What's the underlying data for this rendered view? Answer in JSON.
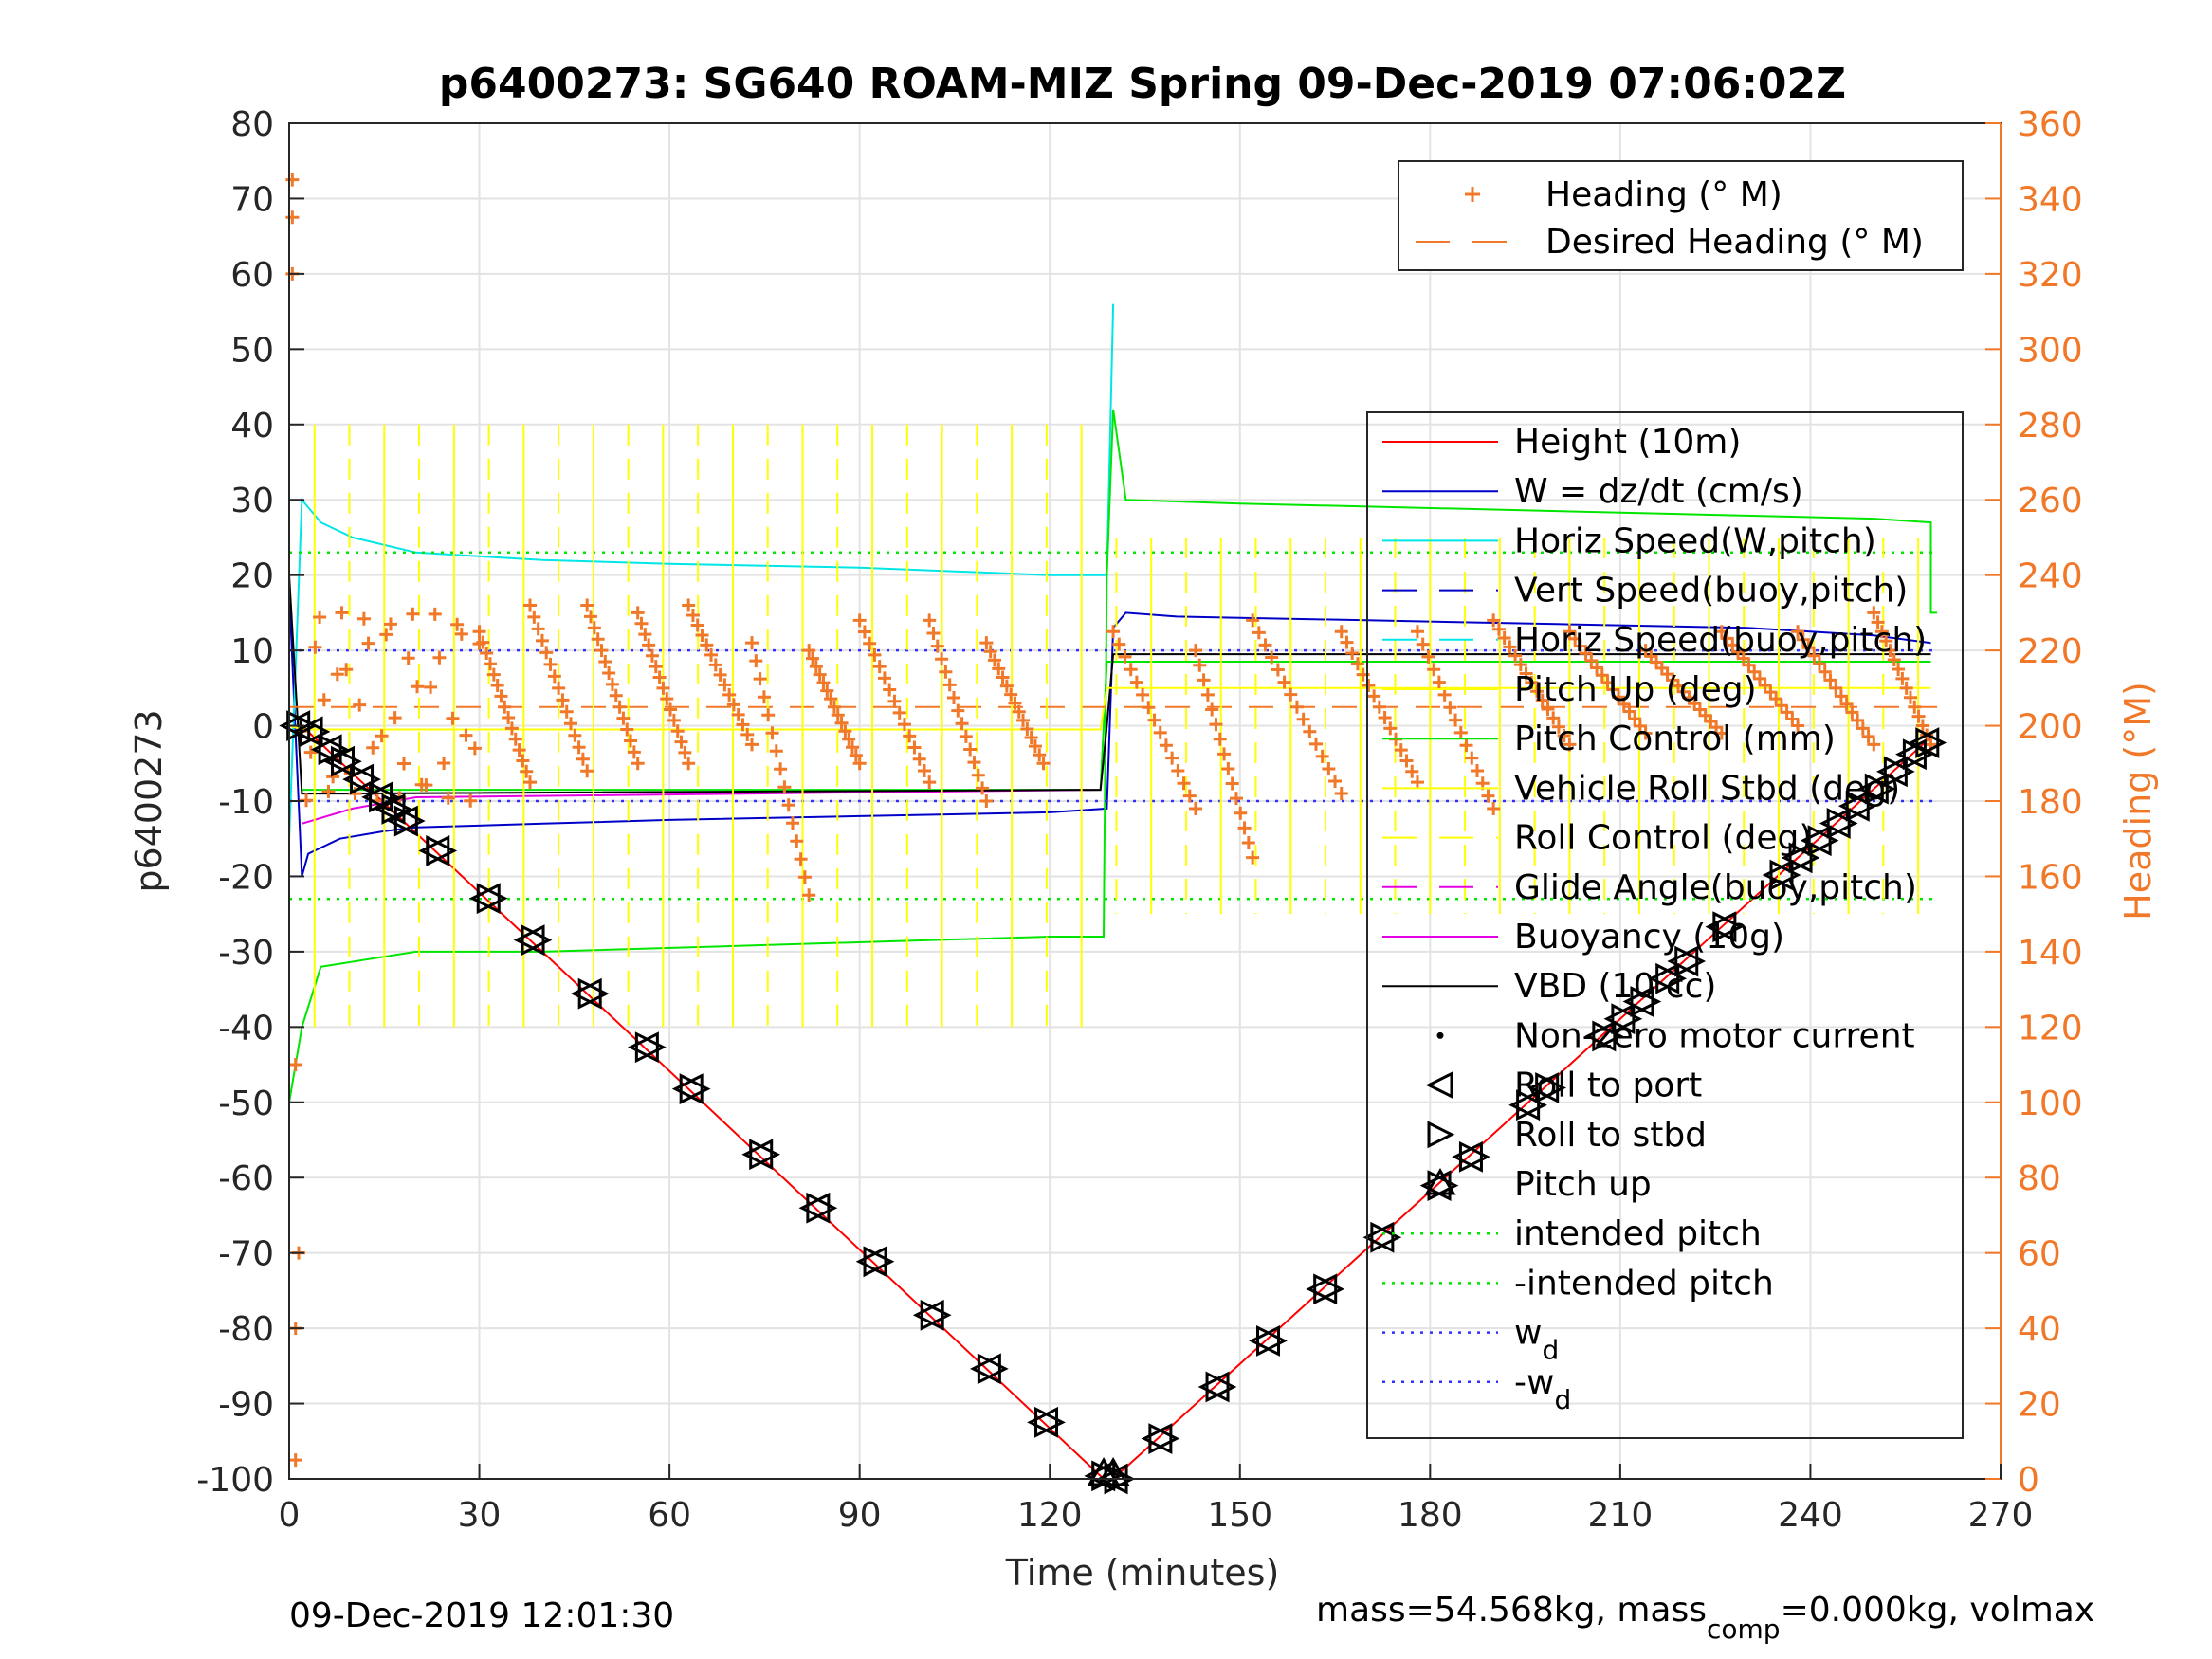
{
  "chart_data": {
    "type": "line",
    "title": "p6400273: SG640 ROAM-MIZ Spring 09-Dec-2019 07:06:02Z",
    "xlabel": "Time (minutes)",
    "ylabel": "p6400273",
    "ylabel_right": "Heading (°M)",
    "xlim": [
      0,
      270
    ],
    "ylim": [
      -100,
      80
    ],
    "ylim_right": [
      0,
      360
    ],
    "x_ticks": [
      0,
      30,
      60,
      90,
      120,
      150,
      180,
      210,
      240,
      270
    ],
    "y_ticks": [
      80,
      70,
      60,
      50,
      40,
      30,
      20,
      10,
      0,
      -10,
      -20,
      -30,
      -40,
      -50,
      -60,
      -70,
      -80,
      -90,
      -100
    ],
    "y_ticks_right": [
      360,
      340,
      320,
      300,
      280,
      260,
      240,
      220,
      200,
      180,
      160,
      140,
      120,
      100,
      80,
      60,
      40,
      20,
      0
    ],
    "grid": true,
    "footer_left": "09-Dec-2019 12:01:30",
    "footer_right_a": "mass=54.568kg, mass",
    "footer_right_sub": "comp",
    "footer_right_b": "=0.000kg, volmax",
    "colors": {
      "height": "#ff0000",
      "w": "#0000c8",
      "horiz_speed": "#00e6e6",
      "pitch": "#00e600",
      "roll": "#ffff00",
      "glide": "#e600e6",
      "vbd": "#000000",
      "heading": "#f07828",
      "wd": "#3232ff"
    },
    "heading_legend": [
      {
        "label": "Heading (° M)",
        "style": "plus"
      },
      {
        "label": "Desired Heading (° M)",
        "style": "dash"
      }
    ],
    "legend": [
      {
        "label": "Height (10m)",
        "style": "solid",
        "color": "#ff0000"
      },
      {
        "label": "W = dz/dt (cm/s)",
        "style": "solid",
        "color": "#0000c8"
      },
      {
        "label": "Horiz Speed(W,pitch)",
        "style": "solid",
        "color": "#00e6e6"
      },
      {
        "label": "Vert Speed(buoy,pitch)",
        "style": "dash",
        "color": "#0000c8"
      },
      {
        "label": "Horiz Speed(buoy,pitch)",
        "style": "dash",
        "color": "#00e6e6"
      },
      {
        "label": "Pitch Up (deg)",
        "style": "solid",
        "color": "#ffff00"
      },
      {
        "label": "Pitch Control (mm)",
        "style": "solid",
        "color": "#00e600"
      },
      {
        "label": "Vehicle Roll Stbd (deg)",
        "style": "solid",
        "color": "#ffff00"
      },
      {
        "label": "Roll Control (deg)",
        "style": "dash",
        "color": "#ffff00"
      },
      {
        "label": "Glide Angle(buoy,pitch)",
        "style": "dash",
        "color": "#e600e6"
      },
      {
        "label": "Buoyancy (10g)",
        "style": "solid",
        "color": "#e600e6"
      },
      {
        "label": "VBD (10 cc)",
        "style": "solid",
        "color": "#000000"
      },
      {
        "label": "Non-zero motor current",
        "style": "dot",
        "color": "#000000"
      },
      {
        "label": "Roll to port",
        "style": "tri-left",
        "color": "#000000"
      },
      {
        "label": "Roll to stbd",
        "style": "tri-right",
        "color": "#000000"
      },
      {
        "label": "Pitch up",
        "style": "tri-up",
        "color": "#000000"
      },
      {
        "label": "intended pitch",
        "style": "dotted",
        "color": "#00e600"
      },
      {
        "label": "-intended pitch",
        "style": "dotted",
        "color": "#00e600"
      },
      {
        "label": "w",
        "sub": "d",
        "style": "dotted",
        "color": "#3232ff"
      },
      {
        "label": "-w",
        "sub": "d",
        "style": "dotted",
        "color": "#3232ff"
      }
    ],
    "series": [
      {
        "key": "height",
        "x": [
          0,
          2,
          128.5,
          130,
          259
        ],
        "y": [
          0,
          0,
          -100,
          -100,
          -1.5
        ]
      },
      {
        "key": "w",
        "x": [
          0,
          2,
          3,
          8,
          15,
          20,
          40,
          60,
          90,
          120,
          129,
          130,
          132,
          140,
          170,
          200,
          230,
          250,
          259
        ],
        "y": [
          18,
          -20,
          -17,
          -15,
          -14,
          -13.5,
          -13,
          -12.5,
          -12,
          -11.5,
          -11,
          13,
          15,
          14.5,
          14,
          13.5,
          13,
          12,
          11
        ]
      },
      {
        "key": "horiz_speed",
        "x": [
          0,
          2,
          5,
          10,
          20,
          40,
          60,
          90,
          120,
          129,
          130
        ],
        "y": [
          -15,
          30,
          27,
          25,
          23,
          22,
          21.5,
          21,
          20,
          20,
          56
        ]
      },
      {
        "key": "pitch_control",
        "x": [
          0,
          2,
          5,
          20,
          40,
          80,
          120,
          128.5,
          129,
          130,
          132,
          150,
          200,
          250,
          259,
          259,
          260
        ],
        "y": [
          -50,
          -40,
          -32,
          -30,
          -30,
          -29,
          -28,
          -28,
          20,
          42,
          30,
          29.5,
          28.5,
          27.5,
          27,
          15,
          15
        ]
      },
      {
        "key": "pitch_ctrl_small",
        "x": [
          2,
          20,
          128,
          129,
          130,
          259
        ],
        "y": [
          -8.5,
          -8.5,
          -8.5,
          8.5,
          8.5,
          8.5
        ]
      },
      {
        "key": "glide",
        "x": [
          2,
          10,
          20,
          128
        ],
        "y": [
          -13,
          -11,
          -9.5,
          -8.5
        ]
      },
      {
        "key": "vbd",
        "x": [
          0,
          2,
          10,
          128,
          129,
          130,
          259
        ],
        "y": [
          20,
          -9,
          -9,
          -8.5,
          0,
          9.5,
          9.5
        ]
      },
      {
        "key": "pitch_up",
        "x": [
          0,
          2,
          128,
          129,
          259
        ],
        "y": [
          0,
          -0.5,
          -0.5,
          5,
          5
        ]
      },
      {
        "key": "wd_pos",
        "x": [
          0,
          260
        ],
        "y": [
          10,
          10
        ]
      },
      {
        "key": "wd_neg",
        "x": [
          0,
          260
        ],
        "y": [
          -10,
          -10
        ]
      },
      {
        "key": "intended_pitch_pos",
        "x": [
          0,
          260
        ],
        "y": [
          23,
          23
        ]
      },
      {
        "key": "intended_pitch_neg",
        "x": [
          0,
          260
        ],
        "y": [
          -23,
          -23
        ]
      },
      {
        "key": "desired_heading",
        "x": [
          0,
          260
        ],
        "y_right": [
          205,
          205
        ]
      }
    ],
    "heading_sawtooth": {
      "cycles": [
        {
          "start": 30,
          "end": 38,
          "high": 225,
          "low": 185
        },
        {
          "start": 38,
          "end": 47,
          "high": 232,
          "low": 188
        },
        {
          "start": 47,
          "end": 55,
          "high": 232,
          "low": 190
        },
        {
          "start": 55,
          "end": 63,
          "high": 230,
          "low": 190
        },
        {
          "start": 63,
          "end": 73,
          "high": 232,
          "low": 195
        },
        {
          "start": 73,
          "end": 82,
          "high": 222,
          "low": 155
        },
        {
          "start": 82,
          "end": 90,
          "high": 220,
          "low": 190
        },
        {
          "start": 90,
          "end": 101,
          "high": 228,
          "low": 185
        },
        {
          "start": 101,
          "end": 110,
          "high": 228,
          "low": 180
        },
        {
          "start": 110,
          "end": 119,
          "high": 222,
          "low": 190
        },
        {
          "start": 130,
          "end": 143,
          "high": 225,
          "low": 178
        },
        {
          "start": 143,
          "end": 152,
          "high": 220,
          "low": 165
        },
        {
          "start": 152,
          "end": 166,
          "high": 228,
          "low": 182
        },
        {
          "start": 166,
          "end": 178,
          "high": 225,
          "low": 185
        },
        {
          "start": 178,
          "end": 190,
          "high": 225,
          "low": 178
        },
        {
          "start": 190,
          "end": 202,
          "high": 228,
          "low": 195
        },
        {
          "start": 202,
          "end": 214,
          "high": 225,
          "low": 198
        },
        {
          "start": 214,
          "end": 226,
          "high": 220,
          "low": 198
        },
        {
          "start": 226,
          "end": 238,
          "high": 225,
          "low": 200
        },
        {
          "start": 238,
          "end": 250,
          "high": 225,
          "low": 195
        },
        {
          "start": 250,
          "end": 259,
          "high": 230,
          "low": 195
        }
      ]
    },
    "roll_markers": {
      "x": [
        1,
        3,
        6,
        8,
        11,
        14,
        16,
        18,
        23,
        31,
        38,
        47,
        56,
        63,
        74,
        83,
        92,
        101,
        110,
        119,
        128,
        130,
        137,
        146,
        154,
        163,
        172,
        181,
        186,
        195,
        198,
        207,
        210,
        213,
        217,
        220,
        226,
        235,
        238,
        241,
        244,
        247,
        250,
        253,
        256,
        258
      ]
    }
  }
}
